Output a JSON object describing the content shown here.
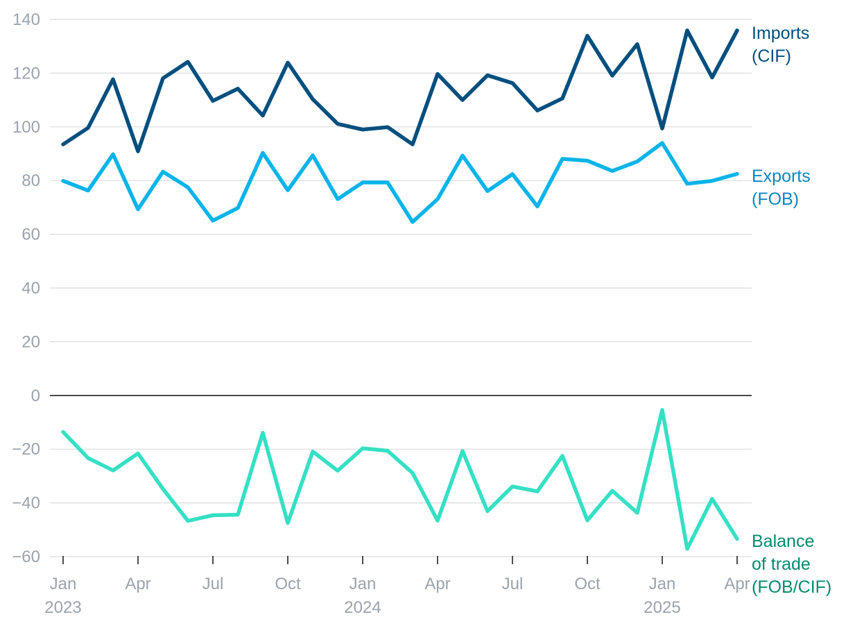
{
  "chart_data": {
    "type": "line",
    "ylim": [
      -60,
      140
    ],
    "yticks": [
      140,
      120,
      100,
      80,
      60,
      40,
      20,
      0,
      -20,
      -40,
      -60
    ],
    "ytick_labels": [
      "140",
      "120",
      "100",
      "80",
      "60",
      "40",
      "20",
      "0",
      "−20",
      "−40",
      "−60"
    ],
    "x": [
      "2023-01",
      "2023-02",
      "2023-03",
      "2023-04",
      "2023-05",
      "2023-06",
      "2023-07",
      "2023-08",
      "2023-09",
      "2023-10",
      "2023-11",
      "2023-12",
      "2024-01",
      "2024-02",
      "2024-03",
      "2024-04",
      "2024-05",
      "2024-06",
      "2024-07",
      "2024-08",
      "2024-09",
      "2024-10",
      "2024-11",
      "2024-12",
      "2025-01",
      "2025-02",
      "2025-03",
      "2025-04"
    ],
    "xticks": [
      {
        "x": "2023-01",
        "label": "Jan",
        "year": "2023"
      },
      {
        "x": "2023-04",
        "label": "Apr",
        "year": ""
      },
      {
        "x": "2023-07",
        "label": "Jul",
        "year": ""
      },
      {
        "x": "2023-10",
        "label": "Oct",
        "year": ""
      },
      {
        "x": "2024-01",
        "label": "Jan",
        "year": "2024"
      },
      {
        "x": "2024-04",
        "label": "Apr",
        "year": ""
      },
      {
        "x": "2024-07",
        "label": "Jul",
        "year": ""
      },
      {
        "x": "2024-10",
        "label": "Oct",
        "year": ""
      },
      {
        "x": "2025-01",
        "label": "Jan",
        "year": "2025"
      },
      {
        "x": "2025-04",
        "label": "Apr",
        "year": ""
      }
    ],
    "grid": true,
    "legend": "direct labels at right end of lines",
    "series": [
      {
        "name": "Imports (CIF)",
        "label_lines": [
          "Imports",
          "(CIF)"
        ],
        "color": "#004f7f",
        "label_color": "#004f7f",
        "values": [
          93.5,
          99.6,
          117.7,
          90.9,
          118.1,
          124.2,
          109.7,
          114.2,
          104.2,
          123.9,
          110.3,
          101.1,
          99.0,
          99.9,
          93.5,
          119.7,
          110.0,
          119.2,
          116.3,
          106.1,
          110.6,
          133.9,
          119.1,
          130.8,
          99.4,
          135.9,
          118.4,
          135.9
        ]
      },
      {
        "name": "Exports (FOB)",
        "label_lines": [
          "Exports",
          "(FOB)"
        ],
        "color": "#0ab4e8",
        "label_color": "#0a86c4",
        "values": [
          79.9,
          76.3,
          89.8,
          69.3,
          83.3,
          77.5,
          65.1,
          69.8,
          90.3,
          76.4,
          89.4,
          73.1,
          79.3,
          79.3,
          64.6,
          73.1,
          89.3,
          76.1,
          82.4,
          70.4,
          88.1,
          87.4,
          83.6,
          87.1,
          94.0,
          78.8,
          79.9,
          82.5
        ]
      },
      {
        "name": "Balance of trade (FOB/CIF)",
        "label_lines": [
          "Balance",
          "of trade",
          "(FOB/CIF)"
        ],
        "color": "#35e0c4",
        "label_color": "#008c6e",
        "values": [
          -13.6,
          -23.3,
          -27.9,
          -21.6,
          -34.8,
          -46.7,
          -44.6,
          -44.4,
          -13.9,
          -47.5,
          -20.9,
          -28.0,
          -19.7,
          -20.6,
          -28.9,
          -46.6,
          -20.7,
          -43.1,
          -33.9,
          -35.7,
          -22.5,
          -46.5,
          -35.5,
          -43.7,
          -5.4,
          -57.1,
          -38.5,
          -53.4
        ]
      }
    ]
  }
}
